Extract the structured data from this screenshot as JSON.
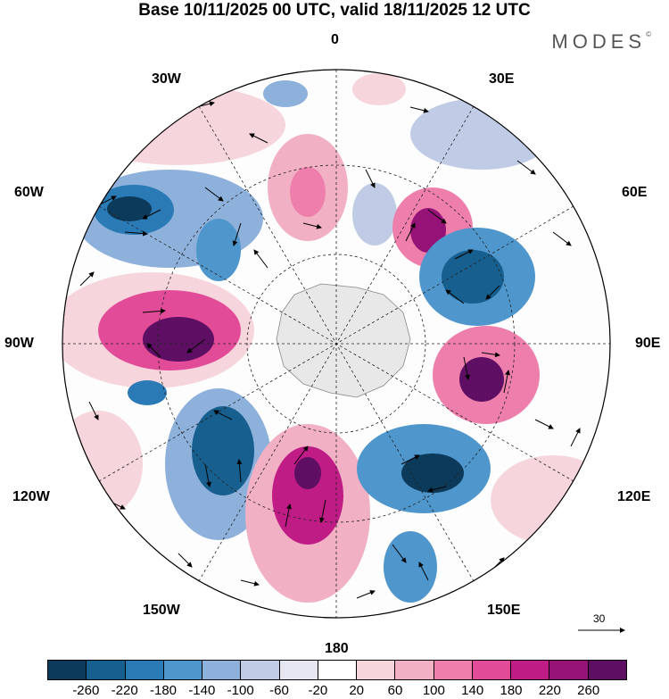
{
  "title": "Base 10/11/2025 00 UTC, valid 18/11/2025 12 UTC",
  "brand": {
    "name": "MODES",
    "mark": "©"
  },
  "longitude_labels": {
    "top": "0",
    "upper_left": "30W",
    "upper_right": "30E",
    "left_upper": "60W",
    "right_upper": "60E",
    "left": "90W",
    "right": "90E",
    "left_lower": "120W",
    "right_lower": "120E",
    "lower_left": "150W",
    "lower_right": "150E",
    "bottom": "180"
  },
  "reference_vector": {
    "value": "30"
  },
  "colorbar": {
    "colors": [
      "#0c3a5a",
      "#175f8e",
      "#2a7ab5",
      "#4f96cc",
      "#8eb1dc",
      "#c0cbe6",
      "#e6e6f2",
      "#ffffff",
      "#f6d6dc",
      "#f2b0c4",
      "#ee7fac",
      "#e24b98",
      "#c01c86",
      "#951277",
      "#5e0f63"
    ],
    "tick_labels": [
      "-260",
      "-220",
      "-180",
      "-140",
      "-100",
      "-60",
      "-20",
      "20",
      "60",
      "100",
      "140",
      "180",
      "220",
      "260"
    ]
  }
}
